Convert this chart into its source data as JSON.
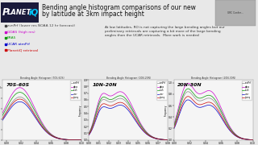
{
  "title_line1": "Bending angle histogram comparisons of our new",
  "title_line2": "by latitude at 3km impact height",
  "bullets": [
    {
      "text": "zvnPrf (lower res NOAA 12 hr forecast)",
      "color": "#444444"
    },
    {
      "text": "GDAS (high res)",
      "color": "#cc00cc"
    },
    {
      "text": "ERA5",
      "color": "#009900"
    },
    {
      "text": "UCAR atmPrf",
      "color": "#0000cc"
    },
    {
      "text": "PlanetiQ retrieval",
      "color": "#cc0000"
    }
  ],
  "annotation": "At low latitudes, RO is not capturing the large bending angles but our\npreliminary retrievals are capturing a bit more of the large bending\nangles than the UCAR retrievals.  More work is needed",
  "plot_labels": [
    "70S-60S",
    "10N-20N",
    "20N-30N"
  ],
  "plot_titles": [
    "Bending Angle Histogram (70S-60S)",
    "Bending Angle Histogram (10N-20N)",
    "Bending Angle Histogram (20N-30N)"
  ],
  "bg_color": "#e8e8e8",
  "plot_bg": "#f5f5f5",
  "logo_bg": "#1a1a3a",
  "line_colors": [
    "#888888",
    "#cc00cc",
    "#009900",
    "#0000cc",
    "#cc0000"
  ],
  "legend_labels": [
    "zvnPrf",
    "gdas",
    "era5",
    "ucar",
    "planq"
  ]
}
